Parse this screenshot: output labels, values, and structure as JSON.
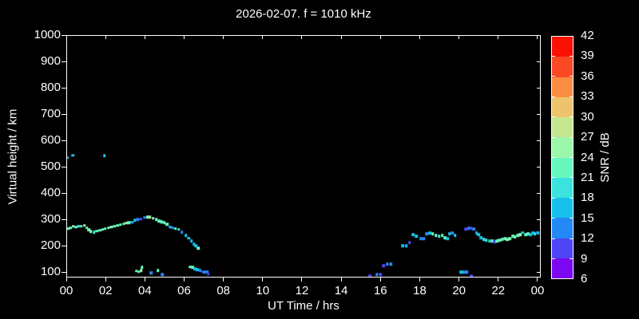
{
  "title": "2026-02-07. f = 1010 kHz",
  "colors": {
    "background": "#000000",
    "text": "#ffffff",
    "axis": "#ffffff"
  },
  "chart_data": {
    "type": "scatter",
    "title": "2026-02-07. f = 1010 kHz",
    "xlabel": "UT Time / hrs",
    "ylabel": "Virtual height / km",
    "xlim": [
      0,
      24.17
    ],
    "ylim": [
      80,
      1000
    ],
    "grid": false,
    "legend_position": "none",
    "x_ticks": {
      "hours": [
        0,
        2,
        4,
        6,
        8,
        10,
        12,
        14,
        16,
        18,
        20,
        22,
        24
      ],
      "labels": [
        "00",
        "02",
        "04",
        "06",
        "08",
        "10",
        "12",
        "14",
        "16",
        "18",
        "20",
        "22",
        "00"
      ]
    },
    "y_ticks": [
      100,
      200,
      300,
      400,
      500,
      600,
      700,
      800,
      900,
      1000
    ],
    "colorbar": {
      "label": "SNR / dB",
      "min": 6,
      "max": 42,
      "ticks": [
        6,
        9,
        12,
        15,
        18,
        21,
        24,
        27,
        30,
        33,
        36,
        39,
        42
      ],
      "band_colors_bottom_to_top": [
        "#7c08f2",
        "#4e46f6",
        "#2489f4",
        "#16c0ea",
        "#3ce2dc",
        "#66f8bd",
        "#9bf8ab",
        "#c5e690",
        "#edc46c",
        "#fb8d43",
        "#fa4923",
        "#fb1005"
      ]
    },
    "points_hr_km_dB": [
      [
        0.05,
        268,
        22
      ],
      [
        0.18,
        272,
        22
      ],
      [
        0.32,
        277,
        25
      ],
      [
        0.45,
        274,
        22
      ],
      [
        0.58,
        277,
        19
      ],
      [
        0.72,
        278,
        22
      ],
      [
        0.88,
        280,
        25
      ],
      [
        1.0,
        272,
        22
      ],
      [
        1.1,
        264,
        22
      ],
      [
        1.22,
        258,
        25
      ],
      [
        1.38,
        255,
        19
      ],
      [
        1.52,
        259,
        22
      ],
      [
        1.68,
        262,
        22
      ],
      [
        1.82,
        265,
        22
      ],
      [
        1.95,
        268,
        22
      ],
      [
        2.1,
        271,
        22
      ],
      [
        2.25,
        274,
        25
      ],
      [
        2.42,
        277,
        22
      ],
      [
        2.58,
        280,
        22
      ],
      [
        2.72,
        283,
        22
      ],
      [
        2.88,
        287,
        22
      ],
      [
        3.02,
        290,
        25
      ],
      [
        3.15,
        291,
        22
      ],
      [
        3.3,
        293,
        16
      ],
      [
        3.45,
        300,
        16
      ],
      [
        3.6,
        303,
        13
      ],
      [
        3.75,
        305,
        10
      ],
      [
        3.95,
        311,
        13
      ],
      [
        4.1,
        313,
        25
      ],
      [
        4.22,
        312,
        25
      ],
      [
        4.38,
        308,
        25
      ],
      [
        4.55,
        303,
        22
      ],
      [
        4.68,
        297,
        22
      ],
      [
        4.82,
        294,
        22
      ],
      [
        4.95,
        291,
        22
      ],
      [
        5.1,
        285,
        22
      ],
      [
        5.25,
        274,
        16
      ],
      [
        5.38,
        272,
        13
      ],
      [
        5.52,
        268,
        22
      ],
      [
        5.68,
        266,
        19
      ],
      [
        5.85,
        255,
        13
      ],
      [
        6.05,
        242,
        16
      ],
      [
        6.2,
        232,
        16
      ],
      [
        6.33,
        221,
        16
      ],
      [
        6.45,
        209,
        16
      ],
      [
        6.55,
        203,
        16
      ],
      [
        6.68,
        194,
        22
      ],
      [
        0.02,
        538,
        13
      ],
      [
        0.3,
        547,
        16
      ],
      [
        1.9,
        545,
        16
      ],
      [
        3.52,
        108,
        22
      ],
      [
        3.65,
        105,
        22
      ],
      [
        3.78,
        109,
        25
      ],
      [
        3.82,
        122,
        22
      ],
      [
        4.28,
        100,
        13
      ],
      [
        4.62,
        109,
        22
      ],
      [
        4.85,
        94,
        13
      ],
      [
        6.28,
        123,
        22
      ],
      [
        6.4,
        121,
        22
      ],
      [
        6.52,
        116,
        16
      ],
      [
        6.65,
        113,
        16
      ],
      [
        6.78,
        110,
        13
      ],
      [
        6.9,
        105,
        10
      ],
      [
        7.0,
        103,
        13
      ],
      [
        7.12,
        105,
        13
      ],
      [
        7.2,
        96,
        10
      ],
      [
        15.42,
        88,
        10
      ],
      [
        15.78,
        95,
        13
      ],
      [
        15.95,
        95,
        10
      ],
      [
        16.12,
        127,
        10
      ],
      [
        16.3,
        133,
        13
      ],
      [
        16.48,
        134,
        13
      ],
      [
        17.1,
        203,
        16
      ],
      [
        17.28,
        203,
        16
      ],
      [
        17.45,
        215,
        10
      ],
      [
        17.62,
        245,
        16
      ],
      [
        17.78,
        239,
        16
      ],
      [
        18.02,
        231,
        13
      ],
      [
        18.15,
        230,
        13
      ],
      [
        18.32,
        248,
        13
      ],
      [
        18.48,
        251,
        16
      ],
      [
        18.62,
        248,
        22
      ],
      [
        18.78,
        242,
        22
      ],
      [
        18.95,
        239,
        19
      ],
      [
        19.1,
        242,
        22
      ],
      [
        19.25,
        233,
        22
      ],
      [
        19.38,
        231,
        16
      ],
      [
        19.48,
        248,
        16
      ],
      [
        19.62,
        251,
        13
      ],
      [
        19.75,
        242,
        16
      ],
      [
        20.3,
        267,
        10
      ],
      [
        20.45,
        270,
        13
      ],
      [
        20.58,
        270,
        10
      ],
      [
        20.72,
        267,
        13
      ],
      [
        20.85,
        251,
        16
      ],
      [
        20.95,
        245,
        16
      ],
      [
        21.08,
        233,
        16
      ],
      [
        21.22,
        227,
        19
      ],
      [
        21.35,
        224,
        19
      ],
      [
        21.5,
        221,
        16
      ],
      [
        21.65,
        221,
        22
      ],
      [
        21.78,
        218,
        10
      ],
      [
        21.9,
        221,
        22
      ],
      [
        22.02,
        224,
        22
      ],
      [
        22.15,
        227,
        22
      ],
      [
        22.3,
        230,
        22
      ],
      [
        22.42,
        227,
        25
      ],
      [
        22.55,
        230,
        22
      ],
      [
        22.7,
        239,
        22
      ],
      [
        22.82,
        236,
        22
      ],
      [
        22.95,
        242,
        22
      ],
      [
        23.08,
        245,
        25
      ],
      [
        23.2,
        254,
        16
      ],
      [
        23.35,
        245,
        22
      ],
      [
        23.48,
        248,
        22
      ],
      [
        23.6,
        245,
        16
      ],
      [
        23.72,
        251,
        16
      ],
      [
        23.82,
        248,
        19
      ],
      [
        23.92,
        254,
        13
      ],
      [
        24.0,
        251,
        16
      ],
      [
        20.05,
        103,
        16
      ],
      [
        20.15,
        103,
        16
      ],
      [
        20.25,
        103,
        13
      ],
      [
        20.35,
        103,
        13
      ],
      [
        20.6,
        88,
        10
      ]
    ]
  }
}
